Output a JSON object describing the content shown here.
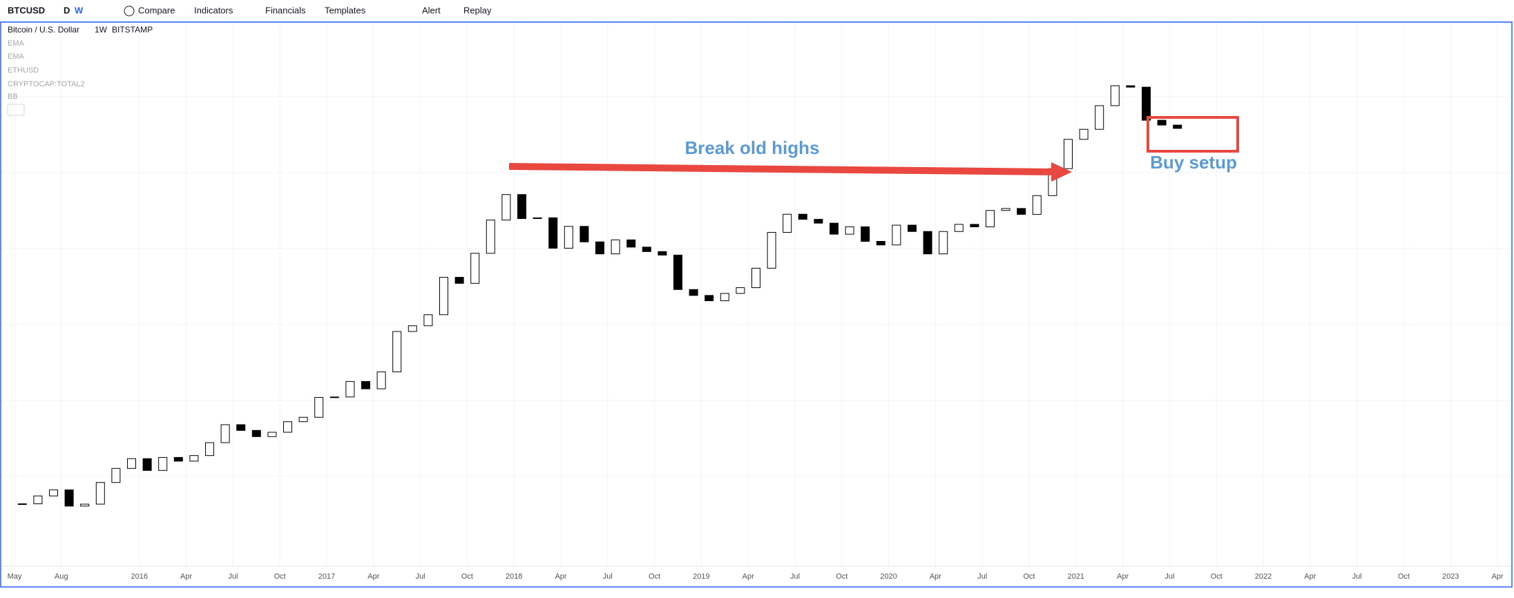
{
  "toolbar": {
    "symbol": "BTCUSD",
    "intervals": [
      "D",
      "W"
    ],
    "buttons": [
      "Compare",
      "Indicators",
      "Financials",
      "Templates",
      "Alert",
      "Replay"
    ]
  },
  "legend": {
    "name": "Bitcoin / U.S. Dollar",
    "interval": "1W",
    "exchange": "BITSTAMP",
    "indicators": [
      "EMA",
      "EMA",
      "ETHUSD",
      "CRYPTOCAP:TOTAL2",
      "BB"
    ]
  },
  "chart_data": {
    "type": "candlestick",
    "log": true,
    "colors": {
      "up": "#ffffff",
      "down": "#000000"
    },
    "annotations": [
      "Break old highs",
      "Buy setup"
    ],
    "x": [
      "2015-05",
      "2015-06",
      "2015-07",
      "2015-08",
      "2015-09",
      "2015-10",
      "2015-11",
      "2015-12",
      "2016-01",
      "2016-02",
      "2016-03",
      "2016-04",
      "2016-05",
      "2016-06",
      "2016-07",
      "2016-08",
      "2016-09",
      "2016-10",
      "2016-11",
      "2016-12",
      "2017-01",
      "2017-02",
      "2017-03",
      "2017-04",
      "2017-05",
      "2017-06",
      "2017-07",
      "2017-08",
      "2017-09",
      "2017-10",
      "2017-11",
      "2017-12",
      "2018-01",
      "2018-02",
      "2018-03",
      "2018-04",
      "2018-05",
      "2018-06",
      "2018-07",
      "2018-08",
      "2018-09",
      "2018-10",
      "2018-11",
      "2018-12",
      "2019-01",
      "2019-02",
      "2019-03",
      "2019-04",
      "2019-05",
      "2019-06",
      "2019-07",
      "2019-08",
      "2019-09",
      "2019-10",
      "2019-11",
      "2019-12",
      "2020-01",
      "2020-02",
      "2020-03",
      "2020-04",
      "2020-05",
      "2020-06",
      "2020-07",
      "2020-08",
      "2020-09",
      "2020-10",
      "2020-11",
      "2020-12",
      "2021-01",
      "2021-02",
      "2021-03",
      "2021-04",
      "2021-05",
      "2021-06",
      "2021-07"
    ],
    "values": [
      237,
      263,
      285,
      230,
      236,
      314,
      378,
      430,
      368,
      437,
      416,
      448,
      531,
      673,
      624,
      575,
      609,
      700,
      742,
      964,
      970,
      1190,
      1080,
      1350,
      2300,
      2480,
      2870,
      4700,
      4340,
      6450,
      10000,
      14000,
      10200,
      10300,
      6900,
      9200,
      7500,
      6400,
      7700,
      7000,
      6600,
      6300,
      4000,
      3700,
      3450,
      3800,
      4100,
      5300,
      8500,
      10800,
      10100,
      9600,
      8300,
      9150,
      7550,
      7200,
      9350,
      8600,
      6400,
      8600,
      9450,
      9140,
      11350,
      11650,
      10780,
      13800,
      19700,
      29000,
      33100,
      45200,
      58800,
      57700,
      37300,
      35000,
      33500
    ],
    "ylim": [
      105,
      122000
    ],
    "xticks": [
      {
        "value": "2015-05",
        "label": "May"
      },
      {
        "value": "2015-08",
        "label": "Aug"
      },
      {
        "value": "2016-01",
        "label": "2016"
      },
      {
        "value": "2016-04",
        "label": "Apr"
      },
      {
        "value": "2016-07",
        "label": "Jul"
      },
      {
        "value": "2016-10",
        "label": "Oct"
      },
      {
        "value": "2017-01",
        "label": "2017"
      },
      {
        "value": "2017-04",
        "label": "Apr"
      },
      {
        "value": "2017-07",
        "label": "Jul"
      },
      {
        "value": "2017-10",
        "label": "Oct"
      },
      {
        "value": "2018-01",
        "label": "2018"
      },
      {
        "value": "2018-04",
        "label": "Apr"
      },
      {
        "value": "2018-07",
        "label": "Jul"
      },
      {
        "value": "2018-10",
        "label": "Oct"
      },
      {
        "value": "2019-01",
        "label": "2019"
      },
      {
        "value": "2019-04",
        "label": "Apr"
      },
      {
        "value": "2019-07",
        "label": "Jul"
      },
      {
        "value": "2019-10",
        "label": "Oct"
      },
      {
        "value": "2020-01",
        "label": "2020"
      },
      {
        "value": "2020-04",
        "label": "Apr"
      },
      {
        "value": "2020-07",
        "label": "Jul"
      },
      {
        "value": "2020-10",
        "label": "Oct"
      },
      {
        "value": "2021-01",
        "label": "2021"
      },
      {
        "value": "2021-04",
        "label": "Apr"
      },
      {
        "value": "2021-07",
        "label": "Jul"
      },
      {
        "value": "2021-10",
        "label": "Oct"
      },
      {
        "value": "2022-01",
        "label": "2022"
      },
      {
        "value": "2022-04",
        "label": "Apr"
      },
      {
        "value": "2022-07",
        "label": "Jul"
      },
      {
        "value": "2022-10",
        "label": "Oct"
      },
      {
        "value": "2023-01",
        "label": "2023"
      },
      {
        "value": "2023-04",
        "label": "Apr"
      }
    ]
  }
}
